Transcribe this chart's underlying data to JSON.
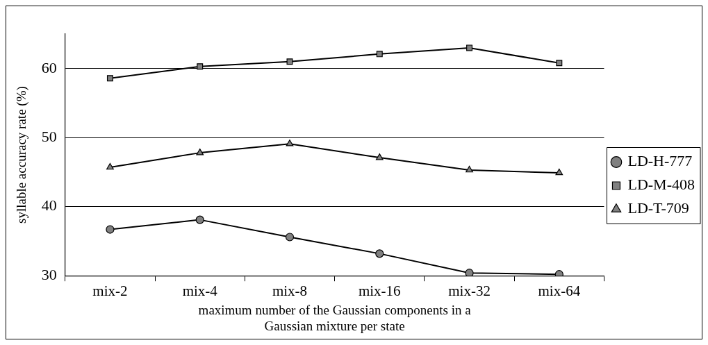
{
  "chart_data": {
    "type": "line",
    "xlabel": "maximum number of the Gaussian components in a Gaussian mixture per state",
    "ylabel": "syllable accuracy rate (%)",
    "categories": [
      "mix-2",
      "mix-4",
      "mix-8",
      "mix-16",
      "mix-32",
      "mix-64"
    ],
    "series": [
      {
        "name": "LD-H-777",
        "color": "#808080",
        "marker": "circle",
        "values": [
          36.7,
          38.1,
          35.6,
          33.2,
          30.4,
          30.2
        ]
      },
      {
        "name": "LD-M-408",
        "color": "#808080",
        "marker": "square",
        "values": [
          58.6,
          60.3,
          61.0,
          62.1,
          63.0,
          60.8
        ]
      },
      {
        "name": "LD-T-709",
        "color": "#808080",
        "marker": "triangle",
        "values": [
          45.7,
          47.8,
          49.1,
          47.1,
          45.3,
          44.9
        ]
      }
    ],
    "ylim": [
      30,
      65
    ],
    "yticks": [
      30,
      40,
      50,
      60
    ],
    "grid": "y",
    "legend": "right",
    "line_style": "solid"
  }
}
